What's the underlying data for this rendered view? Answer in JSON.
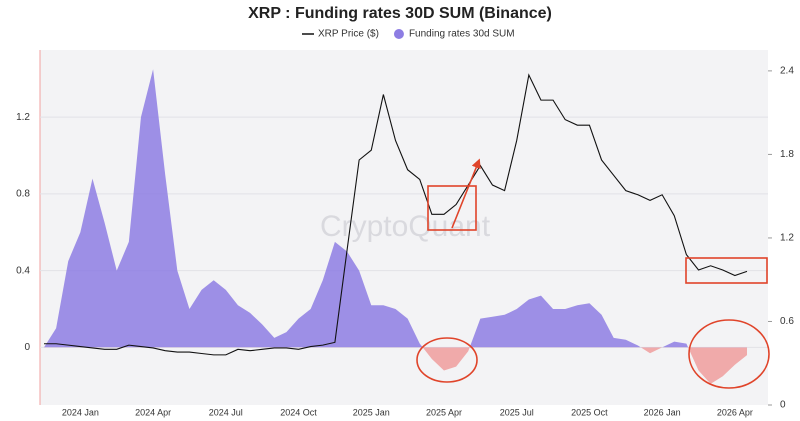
{
  "chart_data": {
    "type": "area-line",
    "title": "XRP : Funding rates 30D SUM (Binance)",
    "watermark": "CryptoQuant",
    "categories": [
      null,
      null,
      null,
      "2024 Jan",
      null,
      null,
      null,
      null,
      null,
      "2024 Apr",
      null,
      null,
      null,
      null,
      null,
      "2024 Jul",
      null,
      null,
      null,
      null,
      null,
      "2024 Oct",
      null,
      null,
      null,
      null,
      null,
      "2025 Jan",
      null,
      null,
      null,
      null,
      null,
      "2025 Apr",
      null,
      null,
      null,
      null,
      null,
      "2025 Jul",
      null,
      null,
      null,
      null,
      null,
      "2025 Oct",
      null,
      null,
      null,
      null,
      null,
      "2026 Jan",
      null,
      null,
      null,
      null,
      null,
      "2026 Apr",
      null
    ],
    "series": [
      {
        "name": "XRP Price ($)",
        "color": "#111111",
        "axis": "y2",
        "kind": "line",
        "values": [
          0.44,
          0.44,
          0.43,
          0.42,
          0.41,
          0.4,
          0.4,
          0.43,
          0.42,
          0.41,
          0.39,
          0.38,
          0.38,
          0.37,
          0.36,
          0.36,
          0.4,
          0.39,
          0.4,
          0.41,
          0.41,
          0.4,
          0.42,
          0.43,
          0.45,
          1.11,
          1.76,
          1.83,
          2.23,
          1.9,
          1.69,
          1.62,
          1.37,
          1.37,
          1.44,
          1.58,
          1.72,
          1.58,
          1.54,
          1.9,
          2.37,
          2.19,
          2.19,
          2.05,
          2.01,
          2.01,
          1.76,
          1.65,
          1.54,
          1.51,
          1.47,
          1.51,
          1.36,
          1.08,
          0.97,
          1.0,
          0.97,
          0.93,
          0.96
        ]
      },
      {
        "name": "Funding rates 30d SUM",
        "color": "#8d7de3",
        "negative_color": "#f0aaaa",
        "axis": "y",
        "kind": "area",
        "values": [
          0.0,
          0.1,
          0.45,
          0.6,
          0.88,
          0.65,
          0.4,
          0.55,
          1.2,
          1.45,
          0.9,
          0.4,
          0.2,
          0.3,
          0.35,
          0.3,
          0.22,
          0.18,
          0.12,
          0.05,
          0.08,
          0.15,
          0.2,
          0.35,
          0.55,
          0.5,
          0.4,
          0.22,
          0.22,
          0.2,
          0.15,
          0.02,
          -0.06,
          -0.12,
          -0.1,
          -0.02,
          0.15,
          0.16,
          0.17,
          0.2,
          0.25,
          0.27,
          0.2,
          0.2,
          0.22,
          0.23,
          0.17,
          0.05,
          0.04,
          0.01,
          -0.03,
          0.0,
          0.03,
          0.02,
          -0.12,
          -0.19,
          -0.15,
          -0.09,
          -0.04
        ]
      }
    ],
    "ylim": [
      -0.3,
      1.55
    ],
    "yticks": [
      0,
      0.4,
      0.8,
      1.2
    ],
    "y2lim": [
      0,
      2.55
    ],
    "y2ticks": [
      0,
      0.6,
      1.2,
      1.8,
      2.4
    ],
    "grid": true,
    "legend": "top"
  }
}
